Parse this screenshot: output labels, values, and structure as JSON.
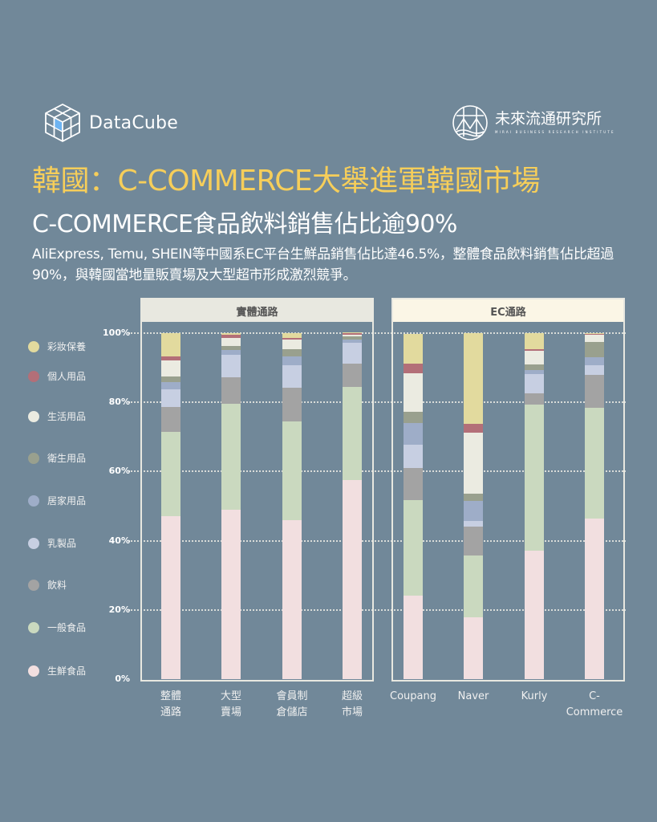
{
  "header": {
    "logo_left": "DataCube",
    "logo_right_name": "未來流通研究所",
    "logo_right_sub": "MIRAI BUSINESS RESEARCH INSTITUTE"
  },
  "title": "韓國：C-COMMERCE大舉進軍韓國市場",
  "subtitle": "C-COMMERCE食品飲料銷售佔比逾90%",
  "description": "AliExpress, Temu, SHEIN等中國系EC平台生鮮品銷售佔比達46.5%，整體食品飲料銷售佔比超過90%，與韓國當地量販賣場及大型超市形成激烈競爭。",
  "panels": [
    {
      "label": "實體通路",
      "bg": "#E8E8E0"
    },
    {
      "label": "EC通路",
      "bg": "#FBF6E6"
    }
  ],
  "chart_data": {
    "type": "bar",
    "stacked": true,
    "normalized": true,
    "title": "C-COMMERCE食品飲料銷售佔比逾90%",
    "xlabel": "",
    "ylabel": "",
    "ylim": [
      0,
      100
    ],
    "yticks": [
      "0%",
      "20%",
      "40%",
      "60%",
      "80%",
      "100%"
    ],
    "grid": true,
    "legend_position": "left",
    "groups": [
      {
        "label": "實體通路",
        "categories": [
          "整體通路",
          "大型賣場",
          "會員制倉儲店",
          "超級市場"
        ]
      },
      {
        "label": "EC通路",
        "categories": [
          "Coupang",
          "Naver",
          "Kurly",
          "C-Commerce"
        ]
      }
    ],
    "categories": [
      "整體通路",
      "大型賣場",
      "會員制倉儲店",
      "超級市場",
      "Coupang",
      "Naver",
      "Kurly",
      "C-Commerce"
    ],
    "category_display": [
      [
        "整體",
        "通路"
      ],
      [
        "大型",
        "賣場"
      ],
      [
        "會員制",
        "倉儲店"
      ],
      [
        "超級",
        "市場"
      ],
      [
        "Coupang",
        ""
      ],
      [
        "Naver",
        ""
      ],
      [
        "Kurly",
        ""
      ],
      [
        "C-",
        "Commerce"
      ]
    ],
    "series": [
      {
        "name": "生鮮食品",
        "color": "#F2DFE0",
        "values": [
          47.1,
          49.0,
          45.9,
          57.5,
          24.1,
          17.9,
          37.1,
          46.5
        ]
      },
      {
        "name": "一般食品",
        "color": "#CAD9BF",
        "values": [
          24.4,
          30.6,
          28.5,
          27.0,
          27.6,
          17.9,
          42.2,
          32.0
        ]
      },
      {
        "name": "飲料",
        "color": "#A3A3A3",
        "values": [
          7.2,
          7.7,
          9.8,
          6.7,
          9.4,
          8.4,
          3.3,
          9.4
        ]
      },
      {
        "name": "乳製品",
        "color": "#C7CFE2",
        "values": [
          5.1,
          6.5,
          6.6,
          6.0,
          6.6,
          1.4,
          5.6,
          2.8
        ]
      },
      {
        "name": "居家用品",
        "color": "#9EADC8",
        "values": [
          2.1,
          1.3,
          2.4,
          1.0,
          6.3,
          5.8,
          1.1,
          2.3
        ]
      },
      {
        "name": "衛生用品",
        "color": "#99A08E",
        "values": [
          1.6,
          1.2,
          2.2,
          0.8,
          3.2,
          2.3,
          1.6,
          4.4
        ]
      },
      {
        "name": "生活用品",
        "color": "#EBEBE1",
        "values": [
          4.6,
          2.2,
          2.8,
          0.6,
          11.2,
          17.6,
          3.9,
          2.3
        ]
      },
      {
        "name": "個人用品",
        "color": "#B36F78",
        "values": [
          1.2,
          1.0,
          0.5,
          0.3,
          2.8,
          2.5,
          0.5,
          0.1
        ]
      },
      {
        "name": "彩妝保養",
        "color": "#E2DA9E",
        "values": [
          6.7,
          0.4,
          1.2,
          0.3,
          8.5,
          26.2,
          4.6,
          0.2
        ]
      }
    ]
  },
  "legend": [
    {
      "label": "彩妝保養",
      "color": "#E2DA9E"
    },
    {
      "label": "個人用品",
      "color": "#B36F78"
    },
    {
      "label": "生活用品",
      "color": "#EBEBE1"
    },
    {
      "label": "衛生用品",
      "color": "#99A08E"
    },
    {
      "label": "居家用品",
      "color": "#9EADC8"
    },
    {
      "label": "乳製品",
      "color": "#C7CFE2"
    },
    {
      "label": "飲料",
      "color": "#A3A3A3"
    },
    {
      "label": "一般食品",
      "color": "#CAD9BF"
    },
    {
      "label": "生鮮食品",
      "color": "#F2DFE0"
    }
  ],
  "colors": {
    "background": "#718899",
    "title": "#F6CE5A",
    "text": "#FFFFFF",
    "logo_accent": "#6EB4F2"
  }
}
